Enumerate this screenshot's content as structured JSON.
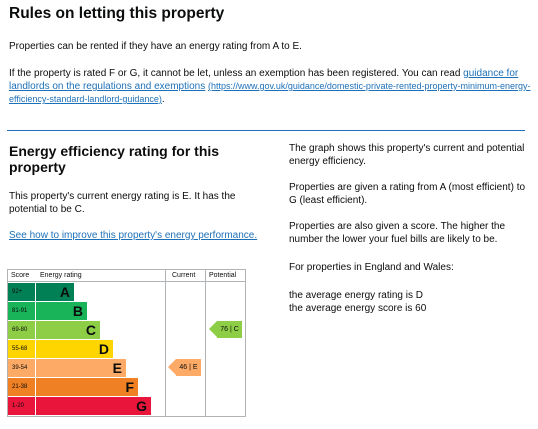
{
  "rules": {
    "title": "Rules on letting this property",
    "para1": "Properties can be rented if they have an energy rating from A to E.",
    "para2": "If the property is rated F or G, it cannot be let, unless an exemption has been registered. You can read ",
    "guidance_link": "guidance for landlords on the regulations and exemptions",
    "guidance_url_text": "(https://www.gov.uk/guidance/domestic-private-rented-property-minimum-energy-efficiency-standard-landlord-guidance)",
    "para2_end": "."
  },
  "efficiency": {
    "title": "Energy efficiency rating for this property",
    "current_text": "This property's current energy rating is E. It has the potential to be C.",
    "improve_link": "See how to improve this property's energy performance."
  },
  "explanation": {
    "graph_text": "The graph shows this property's current and potential energy efficiency.",
    "rating_text": "Properties are given a rating from A (most efficient) to G (least efficient).",
    "score_text": "Properties are also given a score. The higher the number the lower your fuel bills are likely to be.",
    "region_text": "For properties in England and Wales:",
    "avg_rating": "the average energy rating is D",
    "avg_score": "the average energy score is 60"
  },
  "chart": {
    "headers": {
      "score": "Score",
      "rating": "Energy rating",
      "current": "Current",
      "potential": "Potential"
    },
    "bands": [
      {
        "range": "92+",
        "letter": "A",
        "color": "#008054",
        "width_pct": 0.3
      },
      {
        "range": "81-91",
        "letter": "B",
        "color": "#19b459",
        "width_pct": 0.4
      },
      {
        "range": "69-80",
        "letter": "C",
        "color": "#8dce46",
        "width_pct": 0.5
      },
      {
        "range": "55-68",
        "letter": "D",
        "color": "#ffd500",
        "width_pct": 0.6
      },
      {
        "range": "39-54",
        "letter": "E",
        "color": "#fcaa65",
        "width_pct": 0.7
      },
      {
        "range": "21-38",
        "letter": "F",
        "color": "#ef8023",
        "width_pct": 0.8
      },
      {
        "range": "1-20",
        "letter": "G",
        "color": "#e9153b",
        "width_pct": 0.9
      }
    ],
    "current": {
      "score": 46,
      "letter": "E",
      "label": "46 | E",
      "color": "#fcaa65"
    },
    "potential": {
      "score": 76,
      "letter": "C",
      "label": "76 | C",
      "color": "#8dce46"
    }
  }
}
